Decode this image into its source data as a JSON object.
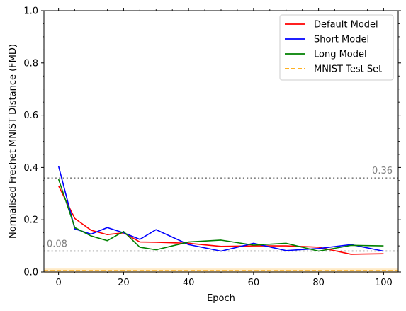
{
  "chart_data": {
    "type": "line",
    "xlabel": "Epoch",
    "ylabel": "Normalised Frechet MNIST Distance (FMD)",
    "xlim": [
      -4.5,
      104.5
    ],
    "ylim": [
      0.0,
      1.0
    ],
    "x_ticks": [
      "0",
      "20",
      "40",
      "60",
      "80",
      "100"
    ],
    "y_ticks": [
      "0.0",
      "0.2",
      "0.4",
      "0.6",
      "0.8",
      "1.0"
    ],
    "legend_position": "top-right",
    "series": [
      {
        "name": "Default Model",
        "color": "#ff0000",
        "style": "solid",
        "x": [
          0,
          5,
          10,
          15,
          20,
          25,
          30,
          40,
          50,
          60,
          70,
          80,
          90,
          100
        ],
        "y": [
          0.33,
          0.205,
          0.16,
          0.143,
          0.15,
          0.115,
          0.114,
          0.11,
          0.098,
          0.1,
          0.1,
          0.095,
          0.068,
          0.07
        ]
      },
      {
        "name": "Short Model",
        "color": "#0000ff",
        "style": "solid",
        "x": [
          0,
          5,
          10,
          15,
          20,
          25,
          30,
          40,
          50,
          60,
          70,
          80,
          90,
          100
        ],
        "y": [
          0.405,
          0.165,
          0.145,
          0.17,
          0.15,
          0.125,
          0.162,
          0.105,
          0.08,
          0.11,
          0.082,
          0.09,
          0.105,
          0.08
        ]
      },
      {
        "name": "Long Model",
        "color": "#008000",
        "style": "solid",
        "x": [
          0,
          5,
          10,
          15,
          20,
          25,
          30,
          40,
          50,
          60,
          70,
          80,
          90,
          100
        ],
        "y": [
          0.355,
          0.17,
          0.138,
          0.12,
          0.155,
          0.095,
          0.085,
          0.115,
          0.122,
          0.103,
          0.11,
          0.08,
          0.102,
          0.1
        ]
      },
      {
        "name": "MNIST Test Set",
        "color": "#ffa500",
        "style": "dashed",
        "y_constant": 0.005
      }
    ],
    "reference_lines": [
      {
        "y": 0.36,
        "label": "0.36",
        "color": "#808080",
        "style": "dotted"
      },
      {
        "y": 0.08,
        "label": "0.08",
        "color": "#808080",
        "style": "dotted"
      }
    ]
  }
}
